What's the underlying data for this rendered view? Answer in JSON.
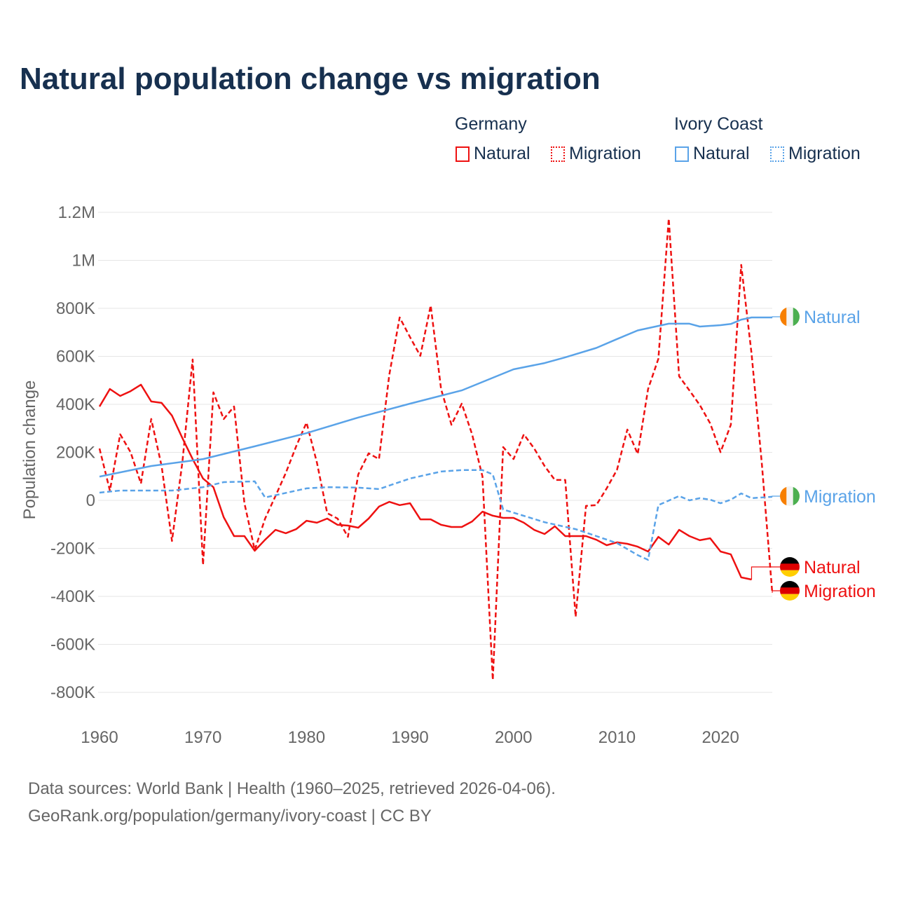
{
  "title": "Natural population change vs migration",
  "legend": {
    "groups": [
      {
        "name": "Germany",
        "items": [
          {
            "label": "Natural",
            "style": "solid"
          },
          {
            "label": "Migration",
            "style": "dotted"
          }
        ],
        "color": "#ee1111"
      },
      {
        "name": "Ivory Coast",
        "items": [
          {
            "label": "Natural",
            "style": "solid"
          },
          {
            "label": "Migration",
            "style": "dotted"
          }
        ],
        "color": "#5aa3e8"
      }
    ]
  },
  "footer": {
    "line1": "Data sources: World Bank | Health (1960–2025, retrieved 2026-04-06).",
    "line2": "GeoRank.org/population/germany/ivory-coast | CC BY"
  },
  "chart_data": {
    "type": "line",
    "title": "Natural population change vs migration",
    "xlabel": "",
    "ylabel": "Population change",
    "xlim": [
      1960,
      2025
    ],
    "ylim": [
      -800000,
      1200000
    ],
    "xticks": [
      1960,
      1970,
      1980,
      1990,
      2000,
      2010,
      2020
    ],
    "xtick_labels": [
      "1960",
      "1970",
      "1980",
      "1990",
      "2000",
      "2010",
      "2020"
    ],
    "yticks": [
      1200000,
      1000000,
      800000,
      600000,
      400000,
      200000,
      0,
      -200000,
      -400000,
      -600000,
      -800000
    ],
    "ytick_labels": [
      "1.2M",
      "1M",
      "800K",
      "600K",
      "400K",
      "200K",
      "0",
      "-200K",
      "-400K",
      "-600K",
      "-800K"
    ],
    "grid": true,
    "legend_position": "top-right",
    "series": [
      {
        "name": "Germany Natural",
        "country": "Germany",
        "kind": "Natural",
        "end_label": "Natural",
        "color": "#ee1111",
        "dash": "solid",
        "flag": "germany",
        "x": [
          1960,
          1961,
          1962,
          1963,
          1964,
          1965,
          1966,
          1967,
          1968,
          1969,
          1970,
          1971,
          1972,
          1973,
          1974,
          1975,
          1976,
          1977,
          1978,
          1979,
          1980,
          1981,
          1982,
          1983,
          1984,
          1985,
          1986,
          1987,
          1988,
          1989,
          1990,
          1991,
          1992,
          1993,
          1994,
          1995,
          1996,
          1997,
          1998,
          1999,
          2000,
          2001,
          2002,
          2003,
          2004,
          2005,
          2006,
          2007,
          2008,
          2009,
          2010,
          2011,
          2012,
          2013,
          2014,
          2015,
          2016,
          2017,
          2018,
          2019,
          2020,
          2021,
          2022,
          2023
        ],
        "y": [
          391000,
          464000,
          435000,
          455000,
          482000,
          412000,
          406000,
          353000,
          260000,
          172000,
          91000,
          55000,
          -70000,
          -149000,
          -149000,
          -210000,
          -164000,
          -123000,
          -137000,
          -120000,
          -85000,
          -93000,
          -76000,
          -102000,
          -105000,
          -114000,
          -76000,
          -26000,
          -6000,
          -20000,
          -12000,
          -79000,
          -79000,
          -102000,
          -111000,
          -111000,
          -88000,
          -47000,
          -64000,
          -73000,
          -73000,
          -93000,
          -123000,
          -140000,
          -108000,
          -149000,
          -149000,
          -149000,
          -164000,
          -187000,
          -175000,
          -181000,
          -193000,
          -213000,
          -152000,
          -184000,
          -123000,
          -149000,
          -166000,
          -158000,
          -213000,
          -225000,
          -321000,
          -330000
        ]
      },
      {
        "name": "Germany Migration",
        "country": "Germany",
        "kind": "Migration",
        "end_label": "Migration",
        "color": "#ee1111",
        "dash": "dashed",
        "flag": "germany",
        "x": [
          1960,
          1961,
          1962,
          1963,
          1964,
          1965,
          1966,
          1967,
          1968,
          1969,
          1970,
          1971,
          1972,
          1973,
          1974,
          1975,
          1976,
          1977,
          1978,
          1979,
          1980,
          1981,
          1982,
          1983,
          1984,
          1985,
          1986,
          1987,
          1988,
          1989,
          1990,
          1991,
          1992,
          1993,
          1994,
          1995,
          1996,
          1997,
          1998,
          1999,
          2000,
          2001,
          2002,
          2003,
          2004,
          2005,
          2006,
          2007,
          2008,
          2009,
          2010,
          2011,
          2012,
          2013,
          2014,
          2015,
          2016,
          2017,
          2018,
          2019,
          2020,
          2021,
          2022,
          2023,
          2024,
          2025
        ],
        "y": [
          216000,
          41000,
          275000,
          201000,
          70000,
          339000,
          143000,
          -169000,
          158000,
          587000,
          -269000,
          450000,
          339000,
          391000,
          -12000,
          -207000,
          -76000,
          18000,
          114000,
          225000,
          324000,
          158000,
          -53000,
          -76000,
          -152000,
          108000,
          196000,
          172000,
          523000,
          762000,
          680000,
          602000,
          812000,
          464000,
          315000,
          403000,
          275000,
          99000,
          -748000,
          222000,
          172000,
          275000,
          216000,
          143000,
          85000,
          85000,
          -485000,
          -23000,
          -20000,
          50000,
          128000,
          295000,
          193000,
          464000,
          590000,
          1174000,
          517000,
          458000,
          397000,
          321000,
          201000,
          315000,
          981000,
          610000,
          150000,
          -385000
        ]
      },
      {
        "name": "Ivory Coast Natural",
        "country": "Ivory Coast",
        "kind": "Natural",
        "end_label": "Natural",
        "color": "#5aa3e8",
        "dash": "solid",
        "flag": "ivory-coast",
        "x": [
          1960,
          1965,
          1970,
          1975,
          1980,
          1985,
          1990,
          1995,
          2000,
          2003,
          2005,
          2008,
          2010,
          2012,
          2015,
          2017,
          2018,
          2020,
          2021,
          2022,
          2023,
          2025
        ],
        "y": [
          99000,
          143000,
          172000,
          225000,
          280000,
          345000,
          403000,
          458000,
          546000,
          572000,
          596000,
          635000,
          672000,
          708000,
          736000,
          736000,
          724000,
          730000,
          735000,
          753000,
          762000,
          762000
        ]
      },
      {
        "name": "Ivory Coast Migration",
        "country": "Ivory Coast",
        "kind": "Migration",
        "end_label": "Migration",
        "color": "#5aa3e8",
        "dash": "dashed",
        "flag": "ivory-coast",
        "x": [
          1960,
          1962,
          1967,
          1970,
          1972,
          1975,
          1976,
          1980,
          1982,
          1985,
          1987,
          1990,
          1993,
          1995,
          1997,
          1998,
          1999,
          2003,
          2006,
          2008,
          2010,
          2012,
          2013,
          2014,
          2016,
          2017,
          2018,
          2019,
          2020,
          2021,
          2022,
          2023,
          2025
        ],
        "y": [
          32000,
          41000,
          41000,
          55000,
          76000,
          79000,
          12000,
          50000,
          55000,
          53000,
          47000,
          91000,
          120000,
          126000,
          126000,
          108000,
          -38000,
          -91000,
          -120000,
          -149000,
          -178000,
          -228000,
          -248000,
          -20000,
          18000,
          0,
          9000,
          3000,
          -12000,
          3000,
          29000,
          9000,
          15000
        ]
      }
    ]
  }
}
